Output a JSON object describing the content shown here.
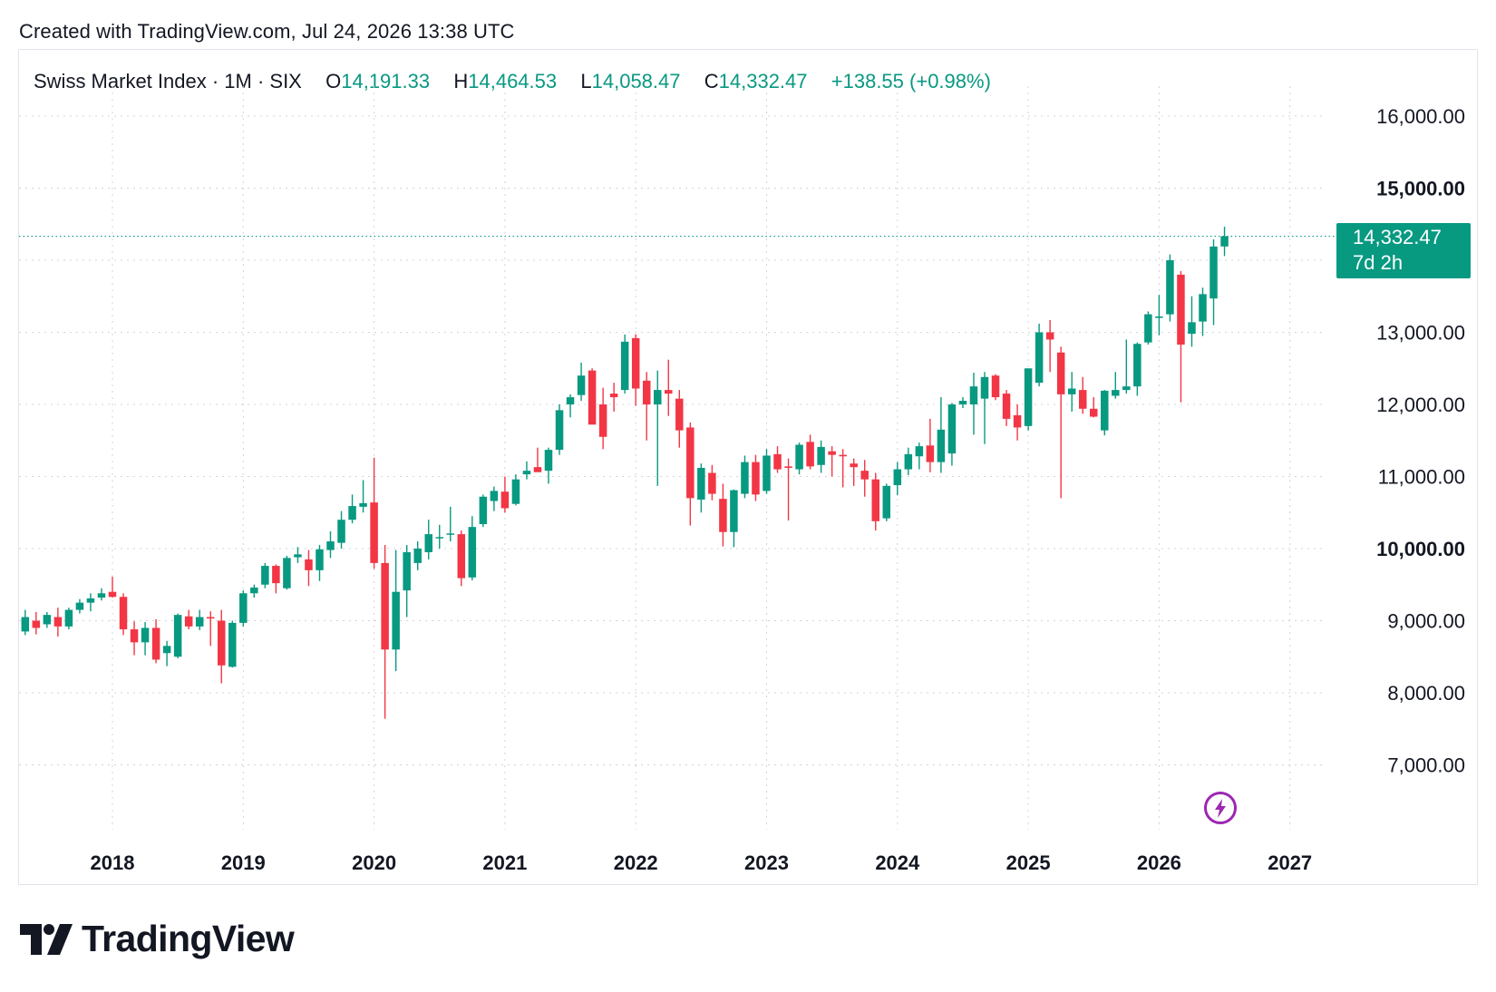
{
  "header": {
    "created_text": "Created with TradingView.com, Jul 24, 2026 13:38 UTC"
  },
  "legend": {
    "symbol": "Swiss Market Index · 1M · SIX",
    "open_label": "O",
    "open_value": "14,191.33",
    "high_label": "H",
    "high_value": "14,464.53",
    "low_label": "L",
    "low_value": "14,058.47",
    "close_label": "C",
    "close_value": "14,332.47",
    "change": "+138.55 (+0.98%)"
  },
  "price_tag": {
    "price": "14,332.47",
    "countdown": "7d 2h"
  },
  "brand": {
    "name": "TradingView"
  },
  "colors": {
    "up": "#089981",
    "down": "#f23645",
    "grid": "#d1d4dc",
    "text": "#131722",
    "accent_icon": "#9c27b0"
  },
  "icons": {
    "logo": "tradingview-logo-icon",
    "bolt": "lightning-bolt-icon"
  },
  "chart_data": {
    "type": "candlestick",
    "interval": "1M",
    "y_ticks": [
      {
        "value": 7000,
        "label": "7,000.00",
        "bold": false
      },
      {
        "value": 8000,
        "label": "8,000.00",
        "bold": false
      },
      {
        "value": 9000,
        "label": "9,000.00",
        "bold": false
      },
      {
        "value": 10000,
        "label": "10,000.00",
        "bold": true
      },
      {
        "value": 11000,
        "label": "11,000.00",
        "bold": false
      },
      {
        "value": 12000,
        "label": "12,000.00",
        "bold": false
      },
      {
        "value": 13000,
        "label": "13,000.00",
        "bold": false
      },
      {
        "value": 15000,
        "label": "15,000.00",
        "bold": true
      },
      {
        "value": 16000,
        "label": "16,000.00",
        "bold": false
      }
    ],
    "x_ticks": [
      "2018",
      "2019",
      "2020",
      "2021",
      "2022",
      "2023",
      "2024",
      "2025",
      "2026",
      "2027"
    ],
    "ylim": [
      6000,
      16800
    ],
    "last_price": 14332.47,
    "grid": true,
    "candles": [
      {
        "d": "2017-05",
        "o": 8850,
        "h": 9150,
        "l": 8800,
        "c": 9050
      },
      {
        "d": "2017-06",
        "o": 9000,
        "h": 9120,
        "l": 8810,
        "c": 8900
      },
      {
        "d": "2017-07",
        "o": 8950,
        "h": 9120,
        "l": 8900,
        "c": 9080
      },
      {
        "d": "2017-08",
        "o": 9050,
        "h": 9180,
        "l": 8780,
        "c": 8920
      },
      {
        "d": "2017-09",
        "o": 8920,
        "h": 9180,
        "l": 8880,
        "c": 9150
      },
      {
        "d": "2017-10",
        "o": 9150,
        "h": 9300,
        "l": 9100,
        "c": 9250
      },
      {
        "d": "2017-11",
        "o": 9250,
        "h": 9380,
        "l": 9130,
        "c": 9310
      },
      {
        "d": "2017-12",
        "o": 9320,
        "h": 9450,
        "l": 9280,
        "c": 9380
      },
      {
        "d": "2018-01",
        "o": 9400,
        "h": 9610,
        "l": 9320,
        "c": 9330
      },
      {
        "d": "2018-02",
        "o": 9330,
        "h": 9380,
        "l": 8800,
        "c": 8880
      },
      {
        "d": "2018-03",
        "o": 8880,
        "h": 8990,
        "l": 8520,
        "c": 8700
      },
      {
        "d": "2018-04",
        "o": 8700,
        "h": 8980,
        "l": 8520,
        "c": 8900
      },
      {
        "d": "2018-05",
        "o": 8900,
        "h": 9020,
        "l": 8410,
        "c": 8460
      },
      {
        "d": "2018-06",
        "o": 8550,
        "h": 8720,
        "l": 8370,
        "c": 8650
      },
      {
        "d": "2018-07",
        "o": 8500,
        "h": 9100,
        "l": 8480,
        "c": 9080
      },
      {
        "d": "2018-08",
        "o": 9060,
        "h": 9150,
        "l": 8880,
        "c": 8920
      },
      {
        "d": "2018-09",
        "o": 8920,
        "h": 9150,
        "l": 8870,
        "c": 9050
      },
      {
        "d": "2018-10",
        "o": 9050,
        "h": 9130,
        "l": 8650,
        "c": 9030
      },
      {
        "d": "2018-11",
        "o": 9000,
        "h": 9150,
        "l": 8130,
        "c": 8380
      },
      {
        "d": "2018-12",
        "o": 8360,
        "h": 9000,
        "l": 8350,
        "c": 8970
      },
      {
        "d": "2019-01",
        "o": 8970,
        "h": 9420,
        "l": 8920,
        "c": 9380
      },
      {
        "d": "2019-02",
        "o": 9380,
        "h": 9500,
        "l": 9320,
        "c": 9460
      },
      {
        "d": "2019-03",
        "o": 9500,
        "h": 9800,
        "l": 9450,
        "c": 9760
      },
      {
        "d": "2019-04",
        "o": 9760,
        "h": 9780,
        "l": 9380,
        "c": 9520
      },
      {
        "d": "2019-05",
        "o": 9450,
        "h": 9900,
        "l": 9430,
        "c": 9870
      },
      {
        "d": "2019-06",
        "o": 9880,
        "h": 10020,
        "l": 9800,
        "c": 9920
      },
      {
        "d": "2019-07",
        "o": 9850,
        "h": 9980,
        "l": 9480,
        "c": 9700
      },
      {
        "d": "2019-08",
        "o": 9700,
        "h": 10050,
        "l": 9550,
        "c": 9990
      },
      {
        "d": "2019-09",
        "o": 9980,
        "h": 10240,
        "l": 9870,
        "c": 10100
      },
      {
        "d": "2019-10",
        "o": 10080,
        "h": 10520,
        "l": 10000,
        "c": 10400
      },
      {
        "d": "2019-11",
        "o": 10400,
        "h": 10750,
        "l": 10350,
        "c": 10590
      },
      {
        "d": "2019-12",
        "o": 10580,
        "h": 10950,
        "l": 10500,
        "c": 10630
      },
      {
        "d": "2020-01",
        "o": 10640,
        "h": 11260,
        "l": 9720,
        "c": 9800
      },
      {
        "d": "2020-02",
        "o": 9800,
        "h": 10050,
        "l": 7640,
        "c": 8600
      },
      {
        "d": "2020-03",
        "o": 8600,
        "h": 9980,
        "l": 8300,
        "c": 9400
      },
      {
        "d": "2020-04",
        "o": 9420,
        "h": 10050,
        "l": 9050,
        "c": 9950
      },
      {
        "d": "2020-05",
        "o": 9800,
        "h": 10100,
        "l": 9700,
        "c": 10000
      },
      {
        "d": "2020-06",
        "o": 9950,
        "h": 10400,
        "l": 9850,
        "c": 10200
      },
      {
        "d": "2020-07",
        "o": 10150,
        "h": 10330,
        "l": 10000,
        "c": 10160
      },
      {
        "d": "2020-08",
        "o": 10200,
        "h": 10580,
        "l": 10100,
        "c": 10210
      },
      {
        "d": "2020-09",
        "o": 10200,
        "h": 10250,
        "l": 9480,
        "c": 9590
      },
      {
        "d": "2020-10",
        "o": 9600,
        "h": 10450,
        "l": 9560,
        "c": 10300
      },
      {
        "d": "2020-11",
        "o": 10340,
        "h": 10750,
        "l": 10300,
        "c": 10720
      },
      {
        "d": "2020-12",
        "o": 10660,
        "h": 10860,
        "l": 10520,
        "c": 10800
      },
      {
        "d": "2021-01",
        "o": 10790,
        "h": 11000,
        "l": 10500,
        "c": 10560
      },
      {
        "d": "2021-02",
        "o": 10620,
        "h": 11030,
        "l": 10600,
        "c": 10960
      },
      {
        "d": "2021-03",
        "o": 11030,
        "h": 11210,
        "l": 10960,
        "c": 11080
      },
      {
        "d": "2021-04",
        "o": 11130,
        "h": 11400,
        "l": 11080,
        "c": 11060
      },
      {
        "d": "2021-05",
        "o": 11080,
        "h": 11400,
        "l": 10900,
        "c": 11370
      },
      {
        "d": "2021-06",
        "o": 11370,
        "h": 12000,
        "l": 11300,
        "c": 11920
      },
      {
        "d": "2021-07",
        "o": 12000,
        "h": 12140,
        "l": 11820,
        "c": 12100
      },
      {
        "d": "2021-08",
        "o": 12130,
        "h": 12580,
        "l": 12050,
        "c": 12400
      },
      {
        "d": "2021-09",
        "o": 12470,
        "h": 12500,
        "l": 11780,
        "c": 11720
      },
      {
        "d": "2021-10",
        "o": 12000,
        "h": 12230,
        "l": 11380,
        "c": 11550
      },
      {
        "d": "2021-11",
        "o": 12150,
        "h": 12300,
        "l": 11900,
        "c": 12100
      },
      {
        "d": "2021-12",
        "o": 12200,
        "h": 12970,
        "l": 12150,
        "c": 12870
      },
      {
        "d": "2022-01",
        "o": 12920,
        "h": 12970,
        "l": 11980,
        "c": 12220
      },
      {
        "d": "2022-02",
        "o": 12330,
        "h": 12450,
        "l": 11500,
        "c": 12000
      },
      {
        "d": "2022-03",
        "o": 12000,
        "h": 12470,
        "l": 10870,
        "c": 12200
      },
      {
        "d": "2022-04",
        "o": 12200,
        "h": 12620,
        "l": 11840,
        "c": 12150
      },
      {
        "d": "2022-05",
        "o": 12080,
        "h": 12200,
        "l": 11400,
        "c": 11640
      },
      {
        "d": "2022-06",
        "o": 11680,
        "h": 11750,
        "l": 10320,
        "c": 10700
      },
      {
        "d": "2022-07",
        "o": 10680,
        "h": 11180,
        "l": 10500,
        "c": 11120
      },
      {
        "d": "2022-08",
        "o": 11050,
        "h": 11160,
        "l": 10670,
        "c": 10760
      },
      {
        "d": "2022-09",
        "o": 10690,
        "h": 10900,
        "l": 10030,
        "c": 10230
      },
      {
        "d": "2022-10",
        "o": 10230,
        "h": 10820,
        "l": 10020,
        "c": 10810
      },
      {
        "d": "2022-11",
        "o": 10760,
        "h": 11290,
        "l": 10700,
        "c": 11200
      },
      {
        "d": "2022-12",
        "o": 11200,
        "h": 11300,
        "l": 10660,
        "c": 10750
      },
      {
        "d": "2023-01",
        "o": 10800,
        "h": 11380,
        "l": 10760,
        "c": 11290
      },
      {
        "d": "2023-02",
        "o": 11310,
        "h": 11420,
        "l": 11050,
        "c": 11100
      },
      {
        "d": "2023-03",
        "o": 11140,
        "h": 11250,
        "l": 10390,
        "c": 11120
      },
      {
        "d": "2023-04",
        "o": 11100,
        "h": 11470,
        "l": 11030,
        "c": 11440
      },
      {
        "d": "2023-05",
        "o": 11480,
        "h": 11580,
        "l": 11100,
        "c": 11140
      },
      {
        "d": "2023-06",
        "o": 11160,
        "h": 11500,
        "l": 11050,
        "c": 11410
      },
      {
        "d": "2023-07",
        "o": 11350,
        "h": 11420,
        "l": 11000,
        "c": 11300
      },
      {
        "d": "2023-08",
        "o": 11300,
        "h": 11380,
        "l": 10850,
        "c": 11280
      },
      {
        "d": "2023-09",
        "o": 11180,
        "h": 11250,
        "l": 10870,
        "c": 11130
      },
      {
        "d": "2023-10",
        "o": 11080,
        "h": 11230,
        "l": 10720,
        "c": 10960
      },
      {
        "d": "2023-11",
        "o": 10960,
        "h": 11050,
        "l": 10250,
        "c": 10380
      },
      {
        "d": "2023-12",
        "o": 10420,
        "h": 10900,
        "l": 10380,
        "c": 10870
      },
      {
        "d": "2024-01",
        "o": 10880,
        "h": 11200,
        "l": 10740,
        "c": 11100
      },
      {
        "d": "2024-02",
        "o": 11100,
        "h": 11400,
        "l": 11020,
        "c": 11310
      },
      {
        "d": "2024-03",
        "o": 11280,
        "h": 11470,
        "l": 11100,
        "c": 11420
      },
      {
        "d": "2024-04",
        "o": 11430,
        "h": 11800,
        "l": 11060,
        "c": 11200
      },
      {
        "d": "2024-05",
        "o": 11200,
        "h": 12100,
        "l": 11050,
        "c": 11650
      },
      {
        "d": "2024-06",
        "o": 11320,
        "h": 12020,
        "l": 11150,
        "c": 12000
      },
      {
        "d": "2024-07",
        "o": 12000,
        "h": 12100,
        "l": 11950,
        "c": 12050
      },
      {
        "d": "2024-08",
        "o": 12000,
        "h": 12440,
        "l": 11580,
        "c": 12250
      },
      {
        "d": "2024-09",
        "o": 12080,
        "h": 12450,
        "l": 11450,
        "c": 12380
      },
      {
        "d": "2024-10",
        "o": 12400,
        "h": 12420,
        "l": 12060,
        "c": 12100
      },
      {
        "d": "2024-11",
        "o": 12150,
        "h": 12200,
        "l": 11700,
        "c": 11800
      },
      {
        "d": "2024-12",
        "o": 11850,
        "h": 12000,
        "l": 11500,
        "c": 11680
      },
      {
        "d": "2025-01",
        "o": 11700,
        "h": 12500,
        "l": 11640,
        "c": 12500
      },
      {
        "d": "2025-02",
        "o": 12300,
        "h": 13120,
        "l": 12250,
        "c": 13000
      },
      {
        "d": "2025-03",
        "o": 13000,
        "h": 13170,
        "l": 12450,
        "c": 12900
      },
      {
        "d": "2025-04",
        "o": 12720,
        "h": 12800,
        "l": 10700,
        "c": 12140
      },
      {
        "d": "2025-05",
        "o": 12140,
        "h": 12450,
        "l": 11900,
        "c": 12220
      },
      {
        "d": "2025-06",
        "o": 12200,
        "h": 12380,
        "l": 11870,
        "c": 11940
      },
      {
        "d": "2025-07",
        "o": 11940,
        "h": 12100,
        "l": 11820,
        "c": 11830
      },
      {
        "d": "2025-08",
        "o": 11640,
        "h": 12200,
        "l": 11570,
        "c": 12190
      },
      {
        "d": "2025-09",
        "o": 12120,
        "h": 12450,
        "l": 12080,
        "c": 12200
      },
      {
        "d": "2025-10",
        "o": 12200,
        "h": 12900,
        "l": 12150,
        "c": 12250
      },
      {
        "d": "2025-11",
        "o": 12250,
        "h": 12860,
        "l": 12120,
        "c": 12840
      },
      {
        "d": "2025-12",
        "o": 12860,
        "h": 13290,
        "l": 12830,
        "c": 13250
      },
      {
        "d": "2026-01",
        "o": 13200,
        "h": 13520,
        "l": 12960,
        "c": 13220
      },
      {
        "d": "2026-02",
        "o": 13250,
        "h": 14080,
        "l": 13150,
        "c": 14000
      },
      {
        "d": "2026-03",
        "o": 13800,
        "h": 13850,
        "l": 12030,
        "c": 12830
      },
      {
        "d": "2026-04",
        "o": 12980,
        "h": 13500,
        "l": 12800,
        "c": 13140
      },
      {
        "d": "2026-05",
        "o": 13150,
        "h": 13620,
        "l": 12950,
        "c": 13530
      },
      {
        "d": "2026-06",
        "o": 13470,
        "h": 14290,
        "l": 13100,
        "c": 14190
      },
      {
        "d": "2026-07",
        "o": 14191.33,
        "h": 14464.53,
        "l": 14058.47,
        "c": 14332.47
      }
    ]
  }
}
